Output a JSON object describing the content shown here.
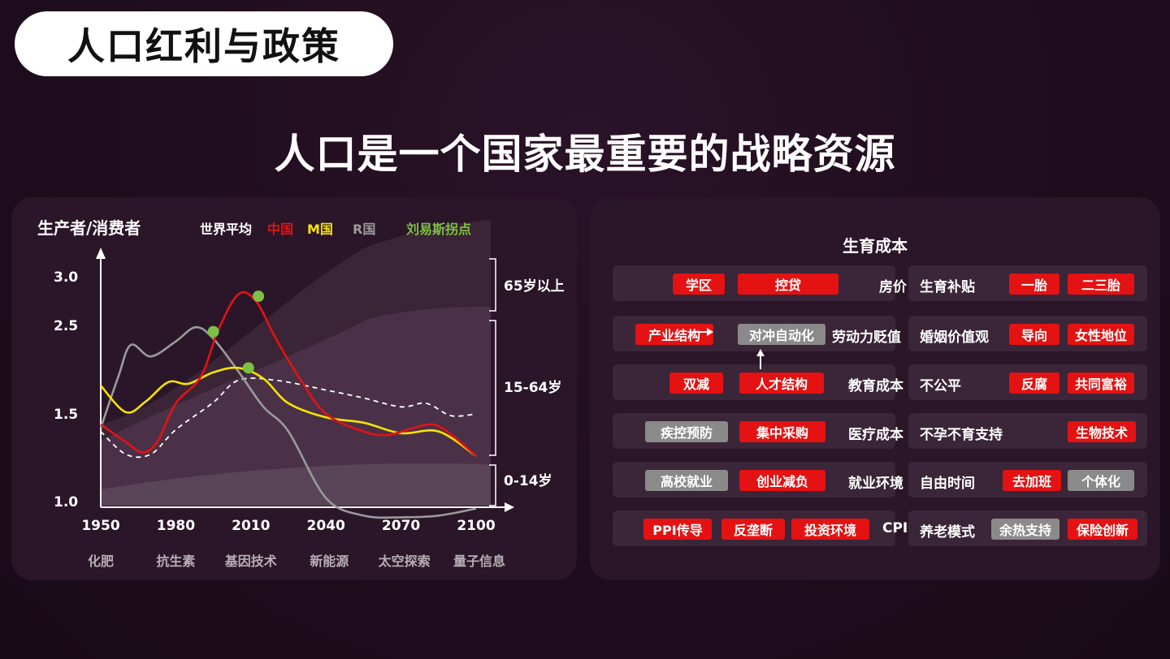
{
  "header": {
    "pill_title": "人口红利与政策",
    "main_title": "人口是一个国家最重要的战略资源"
  },
  "colors": {
    "china": "#e41212",
    "m": "#f5e300",
    "r": "#9a9a9a",
    "lewis": "#7cc143",
    "world": "#ffffff",
    "tag_red": "#e41212",
    "tag_gray": "#8a8a8a"
  },
  "chart_data": {
    "type": "line",
    "ylabel": "生产者/消费者",
    "y_ticks": [
      "3.0",
      "2.5",
      "1.5",
      "1.0"
    ],
    "x_ticks": [
      "1950",
      "1980",
      "2010",
      "2040",
      "2070",
      "2100"
    ],
    "eras": [
      "化肥",
      "抗生素",
      "基因技术",
      "新能源",
      "太空探索",
      "量子信息"
    ],
    "legend": {
      "world": "世界平均",
      "china": "中国",
      "m": "M国",
      "r": "R国",
      "lewis": "刘易斯拐点"
    },
    "age_bands": [
      "65岁以上",
      "15-64岁",
      "0-14岁"
    ],
    "series": [
      {
        "name": "中国",
        "color": "#e41212",
        "points": [
          [
            1950,
            1.44
          ],
          [
            1960,
            1.34
          ],
          [
            1967,
            1.28
          ],
          [
            1973,
            1.35
          ],
          [
            1980,
            1.62
          ],
          [
            1990,
            1.92
          ],
          [
            1997,
            2.45
          ],
          [
            2005,
            2.82
          ],
          [
            2012,
            2.75
          ],
          [
            2020,
            2.35
          ],
          [
            2030,
            1.88
          ],
          [
            2040,
            1.5
          ],
          [
            2055,
            1.4
          ],
          [
            2065,
            1.38
          ],
          [
            2075,
            1.42
          ],
          [
            2085,
            1.43
          ],
          [
            2100,
            1.26
          ]
        ]
      },
      {
        "name": "M国",
        "color": "#f5e300",
        "points": [
          [
            1950,
            1.82
          ],
          [
            1960,
            1.52
          ],
          [
            1968,
            1.64
          ],
          [
            1977,
            1.86
          ],
          [
            1985,
            1.84
          ],
          [
            1995,
            1.97
          ],
          [
            2005,
            2.02
          ],
          [
            2015,
            1.9
          ],
          [
            2025,
            1.62
          ],
          [
            2040,
            1.48
          ],
          [
            2055,
            1.45
          ],
          [
            2070,
            1.39
          ],
          [
            2085,
            1.4
          ],
          [
            2100,
            1.26
          ]
        ]
      },
      {
        "name": "R国",
        "color": "#9a9a9a",
        "points": [
          [
            1950,
            1.42
          ],
          [
            1957,
            1.92
          ],
          [
            1962,
            2.28
          ],
          [
            1970,
            2.15
          ],
          [
            1980,
            2.32
          ],
          [
            1988,
            2.48
          ],
          [
            1995,
            2.35
          ],
          [
            2005,
            1.98
          ],
          [
            2015,
            1.58
          ],
          [
            2025,
            1.4
          ],
          [
            2040,
            1.02
          ],
          [
            2055,
            0.92
          ],
          [
            2070,
            0.91
          ],
          [
            2085,
            0.92
          ],
          [
            2100,
            0.96
          ]
        ]
      },
      {
        "name": "世界平均",
        "color": "#ffffff",
        "dashed": true,
        "points": [
          [
            1950,
            1.4
          ],
          [
            1960,
            1.27
          ],
          [
            1970,
            1.27
          ],
          [
            1980,
            1.41
          ],
          [
            1995,
            1.63
          ],
          [
            2005,
            1.88
          ],
          [
            2020,
            1.88
          ],
          [
            2040,
            1.77
          ],
          [
            2055,
            1.68
          ],
          [
            2070,
            1.58
          ],
          [
            2080,
            1.62
          ],
          [
            2090,
            1.49
          ],
          [
            2100,
            1.5
          ]
        ]
      }
    ],
    "lewis_points": [
      [
        1995,
        2.43
      ],
      [
        2009,
        2.02
      ],
      [
        2013,
        2.8
      ]
    ]
  },
  "policy": {
    "title": "生育成本",
    "left_rows": [
      {
        "tags": [
          {
            "t": "学区",
            "c": "red"
          },
          {
            "t": "控贷",
            "c": "red"
          }
        ],
        "label": "房价"
      },
      {
        "tags": [
          {
            "t": "产业结构",
            "c": "red"
          },
          {
            "t": "对冲自动化",
            "c": "gray"
          }
        ],
        "label": "劳动力贬值"
      },
      {
        "tags": [
          {
            "t": "双减",
            "c": "red"
          },
          {
            "t": "人才结构",
            "c": "red"
          }
        ],
        "label": "教育成本"
      },
      {
        "tags": [
          {
            "t": "疾控预防",
            "c": "gray"
          },
          {
            "t": "集中采购",
            "c": "red"
          }
        ],
        "label": "医疗成本"
      },
      {
        "tags": [
          {
            "t": "高校就业",
            "c": "gray"
          },
          {
            "t": "创业减负",
            "c": "red"
          }
        ],
        "label": "就业环境"
      },
      {
        "tags": [
          {
            "t": "PPI传导",
            "c": "red"
          },
          {
            "t": "反垄断",
            "c": "red"
          },
          {
            "t": "投资环境",
            "c": "red"
          }
        ],
        "label": "CPI"
      }
    ],
    "right_rows": [
      {
        "label": "生育补贴",
        "tags": [
          {
            "t": "一胎",
            "c": "red"
          },
          {
            "t": "二三胎",
            "c": "red"
          }
        ]
      },
      {
        "label": "婚姻价值观",
        "tags": [
          {
            "t": "导向",
            "c": "red"
          },
          {
            "t": "女性地位",
            "c": "red"
          }
        ]
      },
      {
        "label": "不公平",
        "tags": [
          {
            "t": "反腐",
            "c": "red"
          },
          {
            "t": "共同富裕",
            "c": "red"
          }
        ]
      },
      {
        "label": "不孕不育支持",
        "tags": [
          {
            "t": "生物技术",
            "c": "red"
          }
        ]
      },
      {
        "label": "自由时间",
        "tags": [
          {
            "t": "去加班",
            "c": "red"
          },
          {
            "t": "个体化",
            "c": "gray"
          }
        ]
      },
      {
        "label": "养老模式",
        "tags": [
          {
            "t": "余热支持",
            "c": "gray"
          },
          {
            "t": "保险创新",
            "c": "red"
          }
        ]
      }
    ]
  }
}
